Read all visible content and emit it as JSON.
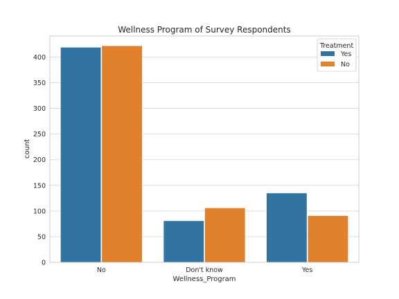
{
  "chart_data": {
    "type": "bar",
    "title": "Wellness Program of Survey Respondents",
    "xlabel": "Wellness_Program",
    "ylabel": "count",
    "categories": [
      "No",
      "Don't know",
      "Yes"
    ],
    "series": [
      {
        "name": "Yes",
        "color": "#3274a1",
        "values": [
          419,
          81,
          135
        ]
      },
      {
        "name": "No",
        "color": "#e1812c",
        "values": [
          422,
          106,
          91
        ]
      }
    ],
    "ylim": [
      0,
      441
    ],
    "yticks": [
      0,
      50,
      100,
      150,
      200,
      250,
      300,
      350,
      400
    ],
    "grid": true,
    "legend": {
      "title": "Treatment",
      "position": "top-right"
    }
  }
}
